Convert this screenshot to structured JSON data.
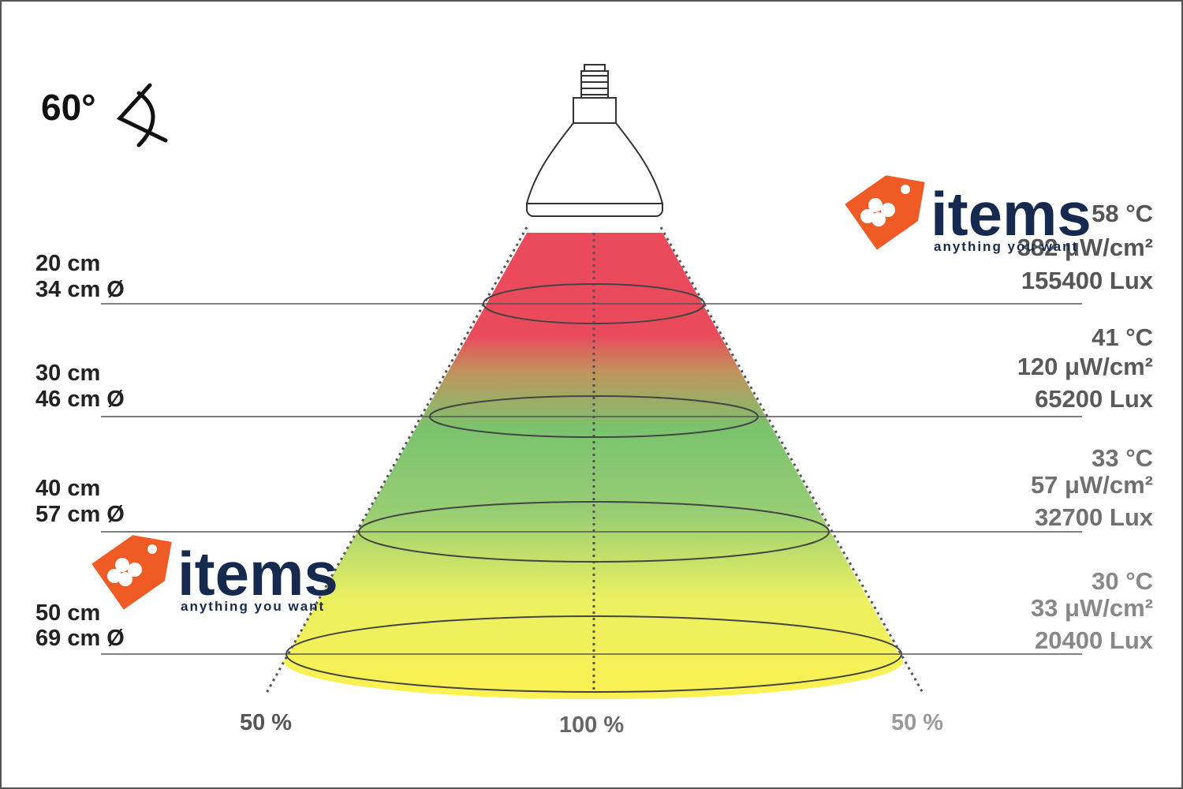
{
  "angle": "60°",
  "levels": [
    {
      "distance": "20 cm",
      "diameter": "34 cm Ø",
      "temperature": "58 °C",
      "irradiance": "382 μW/cm²",
      "illuminance": "155400 Lux"
    },
    {
      "distance": "30 cm",
      "diameter": "46 cm Ø",
      "temperature": "41 °C",
      "irradiance": "120 μW/cm²",
      "illuminance": "65200 Lux"
    },
    {
      "distance": "40 cm",
      "diameter": "57 cm Ø",
      "temperature": "33 °C",
      "irradiance": "57 μW/cm²",
      "illuminance": "32700 Lux"
    },
    {
      "distance": "50 cm",
      "diameter": "69 cm Ø",
      "temperature": "30 °C",
      "irradiance": "33 μW/cm²",
      "illuminance": "20400 Lux"
    }
  ],
  "intensity_labels": [
    "50 %",
    "100 %",
    "50 %"
  ],
  "watermark": {
    "brand": "items",
    "tagline": "anything you want"
  }
}
